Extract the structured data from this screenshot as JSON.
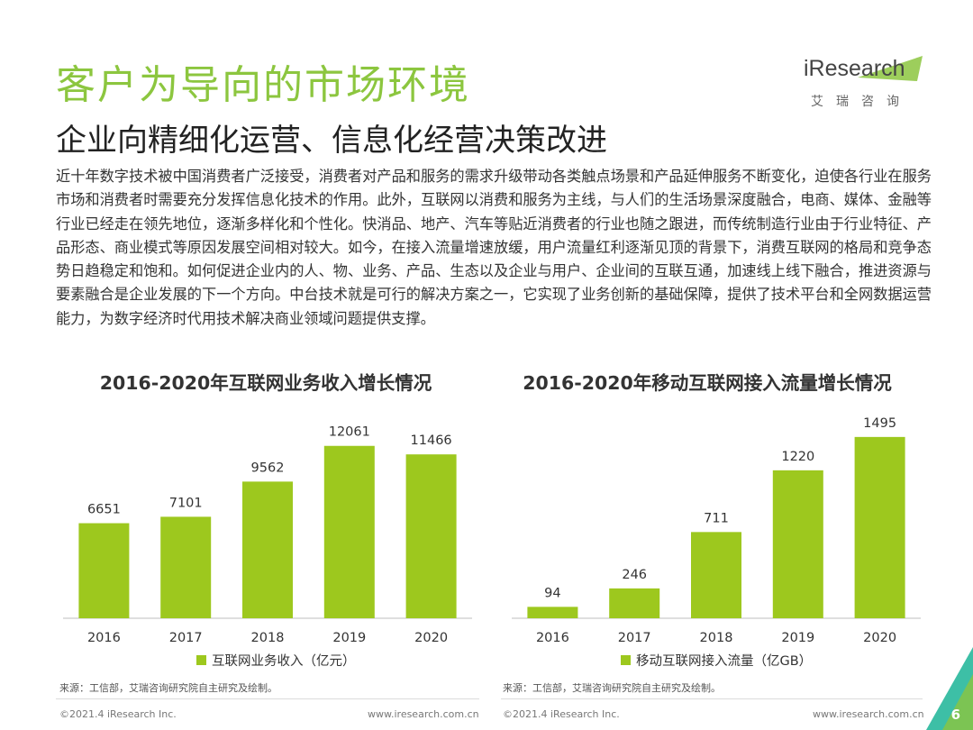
{
  "header": {
    "title": "客户为导向的市场环境",
    "subtitle": "企业向精细化运营、信息化经营决策改进"
  },
  "logo": {
    "wordmark": "iResearch",
    "tagline": "艾瑞咨询"
  },
  "body_text": "近十年数字技术被中国消费者广泛接受，消费者对产品和服务的需求升级带动各类触点场景和产品延伸服务不断变化，迫使各行业在服务市场和消费者时需要充分发挥信息化技术的作用。此外，互联网以消费和服务为主线，与人们的生活场景深度融合，电商、媒体、金融等行业已经走在领先地位，逐渐多样化和个性化。快消品、地产、汽车等贴近消费者的行业也随之跟进，而传统制造行业由于行业特征、产品形态、商业模式等原因发展空间相对较大。如今，在接入流量增速放缓，用户流量红利逐渐见顶的背景下，消费互联网的格局和竞争态势日趋稳定和饱和。如何促进企业内的人、物、业务、产品、生态以及企业与用户、企业间的互联互通，加速线上线下融合，推进资源与要素融合是企业发展的下一个方向。中台技术就是可行的解决方案之一，它实现了业务创新的基础保障，提供了技术平台和全网数据运营能力，为数字经济时代用技术解决商业领域问题提供支撑。",
  "colors": {
    "accent": "#8cc63f",
    "bar": "#9dc81e",
    "corner": "#3dbfa6"
  },
  "chart_data": [
    {
      "type": "bar",
      "title": "2016-2020年互联网业务收入增长情况",
      "categories": [
        "2016",
        "2017",
        "2018",
        "2019",
        "2020"
      ],
      "series": [
        {
          "name": "互联网业务收入（亿元）",
          "values": [
            6651,
            7101,
            9562,
            12061,
            11466
          ]
        }
      ],
      "ylim": [
        0,
        14000
      ],
      "grid": false,
      "legend": "bottom",
      "source": "来源：工信部，艾瑞咨询研究院自主研究及绘制。"
    },
    {
      "type": "bar",
      "title": "2016-2020年移动互联网接入流量增长情况",
      "categories": [
        "2016",
        "2017",
        "2018",
        "2019",
        "2020"
      ],
      "series": [
        {
          "name": "移动互联网接入流量（亿GB）",
          "values": [
            94,
            246,
            711,
            1220,
            1495
          ]
        }
      ],
      "ylim": [
        0,
        1650
      ],
      "grid": false,
      "legend": "bottom",
      "source": "来源：工信部，艾瑞咨询研究院自主研究及绘制。"
    }
  ],
  "footer": {
    "copyright": "©2021.4 iResearch Inc.",
    "url": "www.iresearch.com.cn",
    "page_number": "6"
  }
}
